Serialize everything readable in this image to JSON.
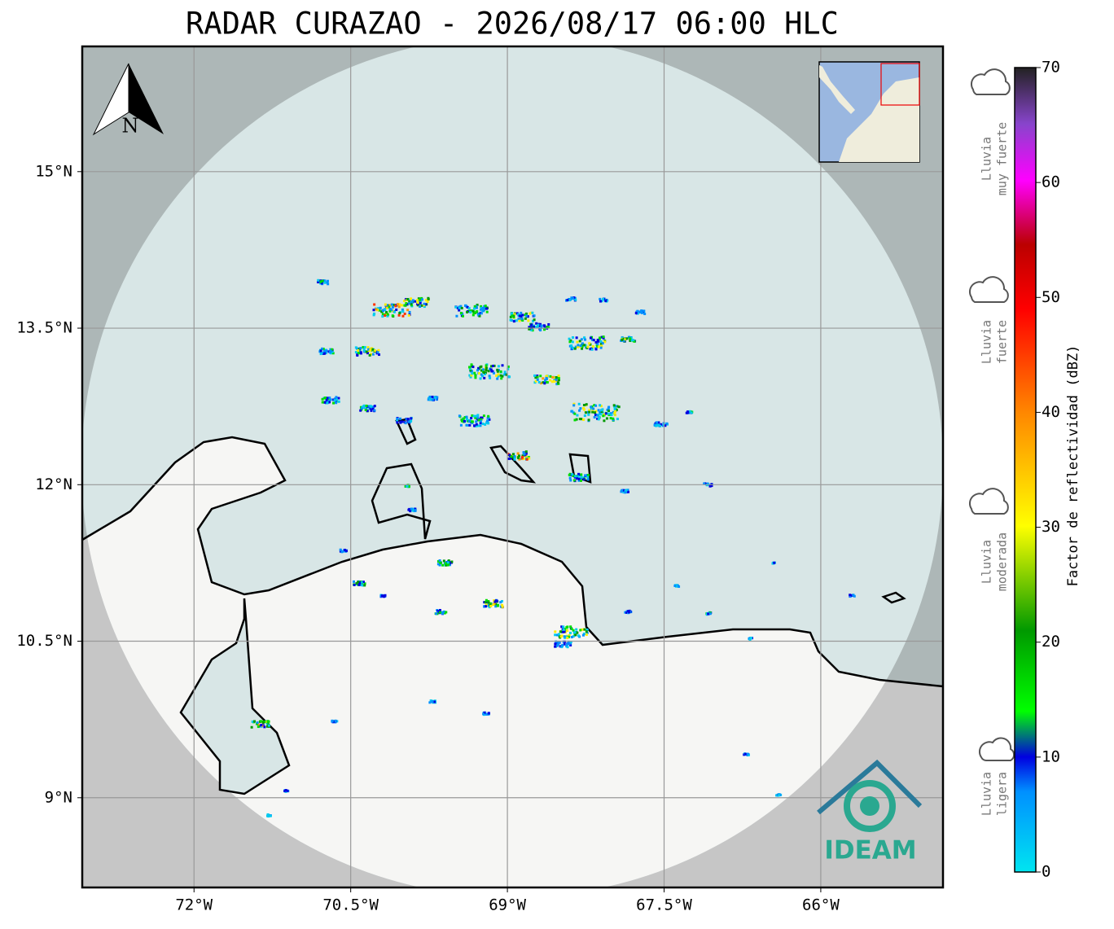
{
  "title": "RADAR CURAZAO - 2026/08/17 06:00 HLC",
  "map": {
    "lonlim": [
      -73.07,
      -64.83
    ],
    "latlim": [
      8.14,
      16.2
    ],
    "lon_ticks": [
      {
        "value": -72,
        "label": "72°W"
      },
      {
        "value": -70.5,
        "label": "70.5°W"
      },
      {
        "value": -69,
        "label": "69°W"
      },
      {
        "value": -67.5,
        "label": "67.5°W"
      },
      {
        "value": -66,
        "label": "66°W"
      }
    ],
    "lat_ticks": [
      {
        "value": 15,
        "label": "15°N"
      },
      {
        "value": 13.5,
        "label": "13.5°N"
      },
      {
        "value": 12,
        "label": "12°N"
      },
      {
        "value": 10.5,
        "label": "10.5°N"
      },
      {
        "value": 9,
        "label": "9°N"
      }
    ],
    "north": "N",
    "logo": "IDEAM"
  },
  "colorbar": {
    "label": "Factor de reflectividad (dBZ)",
    "lim": [
      0,
      70
    ],
    "ticks": [
      0,
      10,
      20,
      30,
      40,
      50,
      60,
      70
    ]
  },
  "rain_levels": [
    [
      "Lluvia",
      "muy fuerte"
    ],
    [
      "Lluvia",
      "fuerte"
    ],
    [
      "Lluvia",
      "moderada"
    ],
    [
      "Lluvia",
      "ligera"
    ]
  ]
}
